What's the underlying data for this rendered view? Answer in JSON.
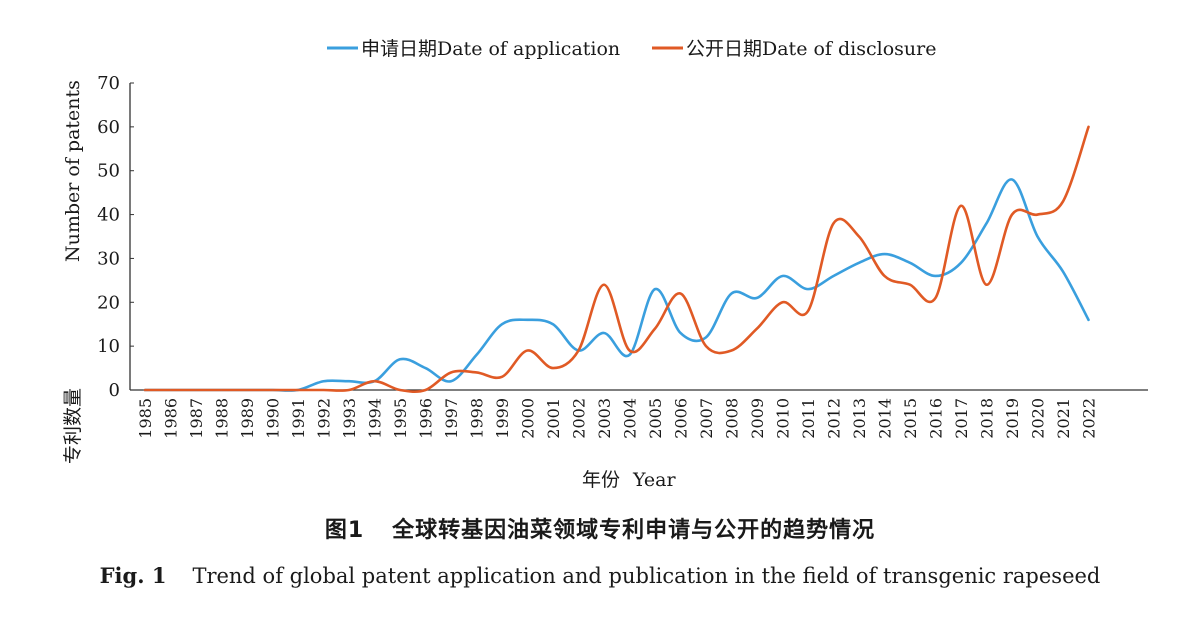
{
  "chart_data": {
    "type": "line",
    "x": [
      "1985",
      "1986",
      "1987",
      "1988",
      "1989",
      "1990",
      "1991",
      "1992",
      "1993",
      "1994",
      "1995",
      "1996",
      "1997",
      "1998",
      "1999",
      "2000",
      "2001",
      "2002",
      "2003",
      "2004",
      "2005",
      "2006",
      "2007",
      "2008",
      "2009",
      "2010",
      "2011",
      "2012",
      "2013",
      "2014",
      "2015",
      "2016",
      "2017",
      "2018",
      "2019",
      "2020",
      "2021",
      "2022"
    ],
    "ylabel_cn": "专利数量",
    "ylabel_en": "Number of patents",
    "xlabel_cn": "年份",
    "xlabel_en": "Year",
    "ylim": [
      0,
      70
    ],
    "yticks": [
      "0",
      "10",
      "20",
      "30",
      "40",
      "50",
      "60",
      "70"
    ],
    "grid": false,
    "legend_position": "top",
    "series": [
      {
        "name": "申请日期Date of application",
        "color": "#3a9fde",
        "values": [
          0,
          0,
          0,
          0,
          0,
          0,
          0,
          2,
          2,
          2,
          7,
          5,
          2,
          8,
          15,
          16,
          15,
          9,
          13,
          8,
          23,
          13,
          12,
          22,
          21,
          26,
          23,
          26,
          29,
          31,
          29,
          26,
          29,
          38,
          48,
          35,
          27,
          16
        ]
      },
      {
        "name": "公开日期Date of disclosure",
        "color": "#e05a25",
        "values": [
          0,
          0,
          0,
          0,
          0,
          0,
          0,
          0,
          0,
          2,
          0,
          0,
          4,
          4,
          3,
          9,
          5,
          9,
          24,
          9,
          14,
          22,
          10,
          9,
          14,
          20,
          18,
          38,
          35,
          26,
          24,
          21,
          42,
          24,
          40,
          40,
          43,
          60
        ]
      }
    ]
  },
  "caption": {
    "cn_fig": "图1",
    "cn_text": "全球转基因油菜领域专利申请与公开的趋势情况",
    "en_fig": "Fig. 1",
    "en_text": "Trend of global patent application and publication in the field of transgenic rapeseed"
  }
}
